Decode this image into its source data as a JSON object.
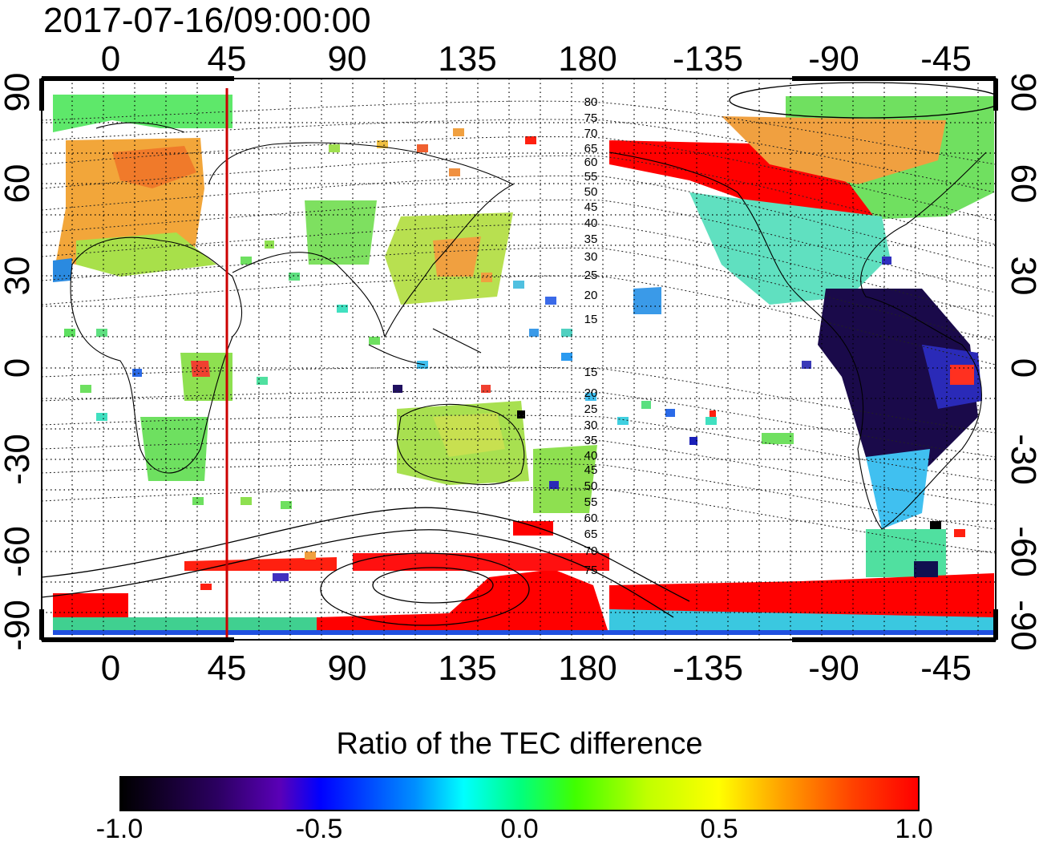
{
  "title": "2017-07-16/09:00:00",
  "map": {
    "top_lon_labels": [
      "0",
      "45",
      "90",
      "135",
      "180",
      "-135",
      "-90",
      "-45"
    ],
    "bottom_lon_labels": [
      "0",
      "45",
      "90",
      "135",
      "180",
      "-135",
      "-90",
      "-45"
    ],
    "left_lat_labels": [
      "90",
      "60",
      "30",
      "0",
      "-30",
      "-60",
      "-90"
    ],
    "right_lat_labels": [
      "90",
      "60",
      "30",
      "0",
      "-30",
      "-60",
      "-90"
    ],
    "contour_labels": [
      "80",
      "75",
      "70",
      "65",
      "60",
      "55",
      "50",
      "45",
      "40",
      "35",
      "30",
      "25",
      "20",
      "15",
      "15",
      "20",
      "25",
      "30",
      "35",
      "40",
      "45",
      "50",
      "55",
      "60",
      "65",
      "70",
      "75"
    ],
    "meridian_marker": {
      "longitude": 45,
      "color": "#cc0000"
    }
  },
  "colorbar": {
    "title": "Ratio of the TEC difference",
    "ticks": [
      "-1.0",
      "-0.5",
      "0.0",
      "0.5",
      "1.0"
    ],
    "range": [
      -1.0,
      1.0
    ]
  }
}
